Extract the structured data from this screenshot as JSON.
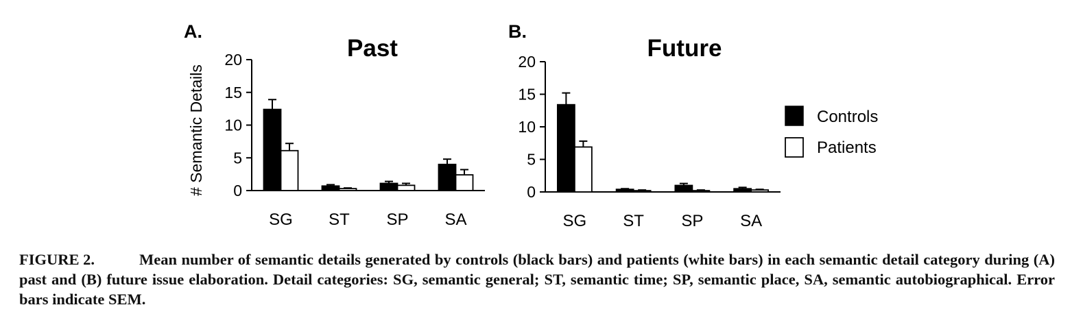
{
  "chart_data": [
    {
      "type": "bar",
      "panel": "A.",
      "title": "Past",
      "ylabel": "# Semantic Details",
      "xlabel": "",
      "ylim": [
        0,
        20
      ],
      "yticks": [
        0,
        5,
        10,
        15,
        20
      ],
      "categories": [
        "SG",
        "ST",
        "SP",
        "SA"
      ],
      "series": [
        {
          "name": "Controls",
          "color": "#000000",
          "values": [
            12.4,
            0.7,
            1.1,
            4.0
          ],
          "sem": [
            1.5,
            0.2,
            0.3,
            0.8
          ]
        },
        {
          "name": "Patients",
          "color": "#ffffff",
          "values": [
            6.1,
            0.3,
            0.8,
            2.4
          ],
          "sem": [
            1.1,
            0.1,
            0.3,
            0.8
          ]
        }
      ],
      "grid": false
    },
    {
      "type": "bar",
      "panel": "B.",
      "title": "Future",
      "ylabel": "",
      "xlabel": "",
      "ylim": [
        0,
        20
      ],
      "yticks": [
        0,
        5,
        10,
        15,
        20
      ],
      "categories": [
        "SG",
        "ST",
        "SP",
        "SA"
      ],
      "series": [
        {
          "name": "Controls",
          "color": "#000000",
          "values": [
            13.4,
            0.4,
            1.0,
            0.5
          ],
          "sem": [
            1.8,
            0.1,
            0.3,
            0.2
          ]
        },
        {
          "name": "Patients",
          "color": "#ffffff",
          "values": [
            6.9,
            0.2,
            0.2,
            0.3
          ],
          "sem": [
            0.9,
            0.1,
            0.1,
            0.1
          ]
        }
      ],
      "grid": false
    }
  ],
  "legend": {
    "placement": "right",
    "items": [
      {
        "label": "Controls",
        "color": "#000000"
      },
      {
        "label": "Patients",
        "color": "#ffffff"
      }
    ]
  },
  "caption": {
    "label": "FIGURE 2.",
    "text": "Mean number of semantic details generated by controls (black bars) and patients (white bars) in each semantic detail category during (A) past and (B) future issue elaboration. Detail categories: SG, semantic general; ST, semantic time; SP, semantic place, SA, semantic autobiographical. Error bars indicate SEM."
  }
}
